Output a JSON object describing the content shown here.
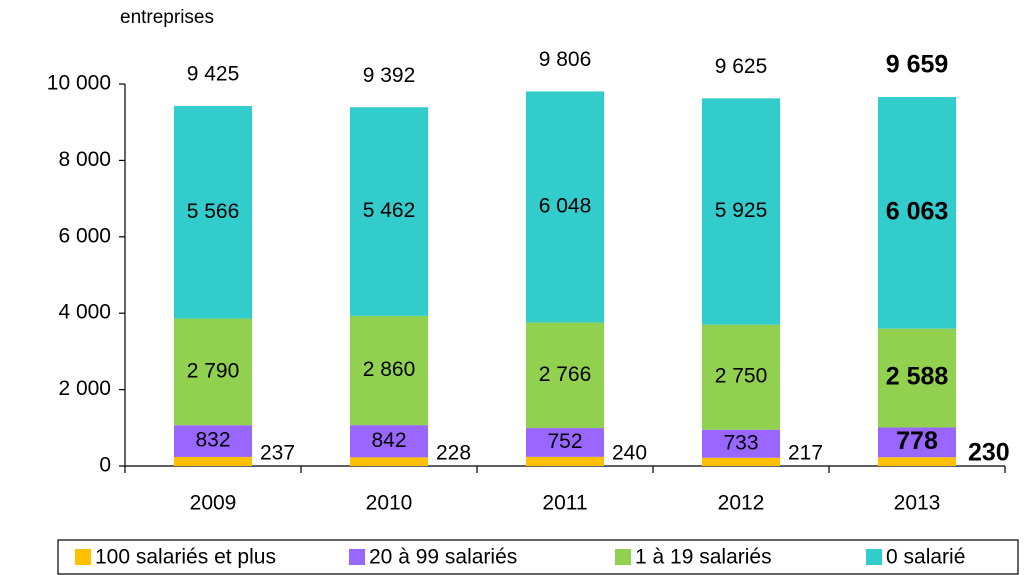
{
  "chart_data": {
    "type": "stacked_bar",
    "y_unit_label": "entreprises",
    "categories": [
      "2009",
      "2010",
      "2011",
      "2012",
      "2013"
    ],
    "series": [
      {
        "name": "100 salariés et plus",
        "color": "#ffc000",
        "label_color": "#000000",
        "values": [
          237,
          228,
          240,
          217,
          230
        ],
        "value_labels": [
          "237",
          "228",
          "240",
          "217",
          "230"
        ]
      },
      {
        "name": "20 à 99 salariés",
        "color": "#9966ff",
        "label_color": "#000000",
        "values": [
          832,
          842,
          752,
          733,
          778
        ],
        "value_labels": [
          "832",
          "842",
          "752",
          "733",
          "778"
        ]
      },
      {
        "name": "1 à 19 salariés",
        "color": "#92d050",
        "label_color": "#ffffff",
        "values": [
          2790,
          2860,
          2766,
          2750,
          2588
        ],
        "value_labels": [
          "2 790",
          "2 860",
          "2 766",
          "2 750",
          "2 588"
        ]
      },
      {
        "name": "0 salarié",
        "color": "#33cccc",
        "label_color": "#ffffff",
        "values": [
          5566,
          5462,
          6048,
          5925,
          6063
        ],
        "value_labels": [
          "5 566",
          "5 462",
          "6 048",
          "5 925",
          "6 063"
        ]
      }
    ],
    "totals": {
      "values": [
        9425,
        9392,
        9806,
        9625,
        9659
      ],
      "value_labels": [
        "9 425",
        "9 392",
        "9 806",
        "9 625",
        "9 659"
      ]
    },
    "highlight": {
      "category": "2013",
      "total_color": "#cc0066"
    },
    "ylim": [
      0,
      10000
    ],
    "yticks": [
      0,
      {
        "value": 2000,
        "label": "2 000"
      },
      {
        "value": 4000,
        "label": "4 000"
      },
      {
        "value": 6000,
        "label": "6 000"
      },
      {
        "value": 8000,
        "label": "8 000"
      },
      {
        "value": 10000,
        "label": "10 000"
      }
    ],
    "grid": false,
    "legend": "bottom"
  }
}
